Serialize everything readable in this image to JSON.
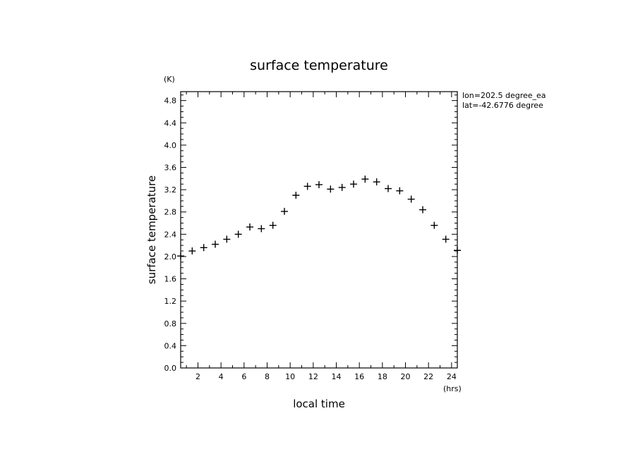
{
  "chart_data": {
    "type": "scatter",
    "title": "surface temperature",
    "xlabel": "local time",
    "ylabel": "surface temperature",
    "x_unit": "(hrs)",
    "y_unit": "(K)",
    "xlim": [
      0.5,
      24.5
    ],
    "ylim": [
      0.0,
      4.96
    ],
    "xticks": [
      2,
      4,
      6,
      8,
      10,
      12,
      14,
      16,
      18,
      20,
      22,
      24
    ],
    "xtick_labels": [
      "2",
      "4",
      "6",
      "8",
      "10",
      "12",
      "14",
      "16",
      "18",
      "20",
      "22",
      "24"
    ],
    "yticks": [
      0.0,
      0.4,
      0.8,
      1.2,
      1.6,
      2.0,
      2.4,
      2.8,
      3.2,
      3.6,
      4.0,
      4.4,
      4.8
    ],
    "ytick_labels": [
      "0.0",
      "0.4",
      "0.8",
      "1.2",
      "1.6",
      "2.0",
      "2.4",
      "2.8",
      "3.2",
      "3.6",
      "4.0",
      "4.4",
      "4.8"
    ],
    "annotations": [
      "lon=202.5 degree_ea",
      "lat=-42.6776 degree"
    ],
    "marker": "plus",
    "grid": false,
    "x": [
      0.5,
      1.5,
      2.5,
      3.5,
      4.5,
      5.5,
      6.5,
      7.5,
      8.5,
      9.5,
      10.5,
      11.5,
      12.5,
      13.5,
      14.5,
      15.5,
      16.5,
      17.5,
      18.5,
      19.5,
      20.5,
      21.5,
      22.5,
      23.5,
      24.5
    ],
    "y": [
      2.01,
      2.1,
      2.16,
      2.22,
      2.31,
      2.4,
      2.53,
      2.5,
      2.56,
      2.81,
      3.1,
      3.26,
      3.29,
      3.21,
      3.24,
      3.3,
      3.39,
      3.34,
      3.22,
      3.18,
      3.03,
      2.84,
      2.56,
      2.31,
      2.11
    ]
  }
}
